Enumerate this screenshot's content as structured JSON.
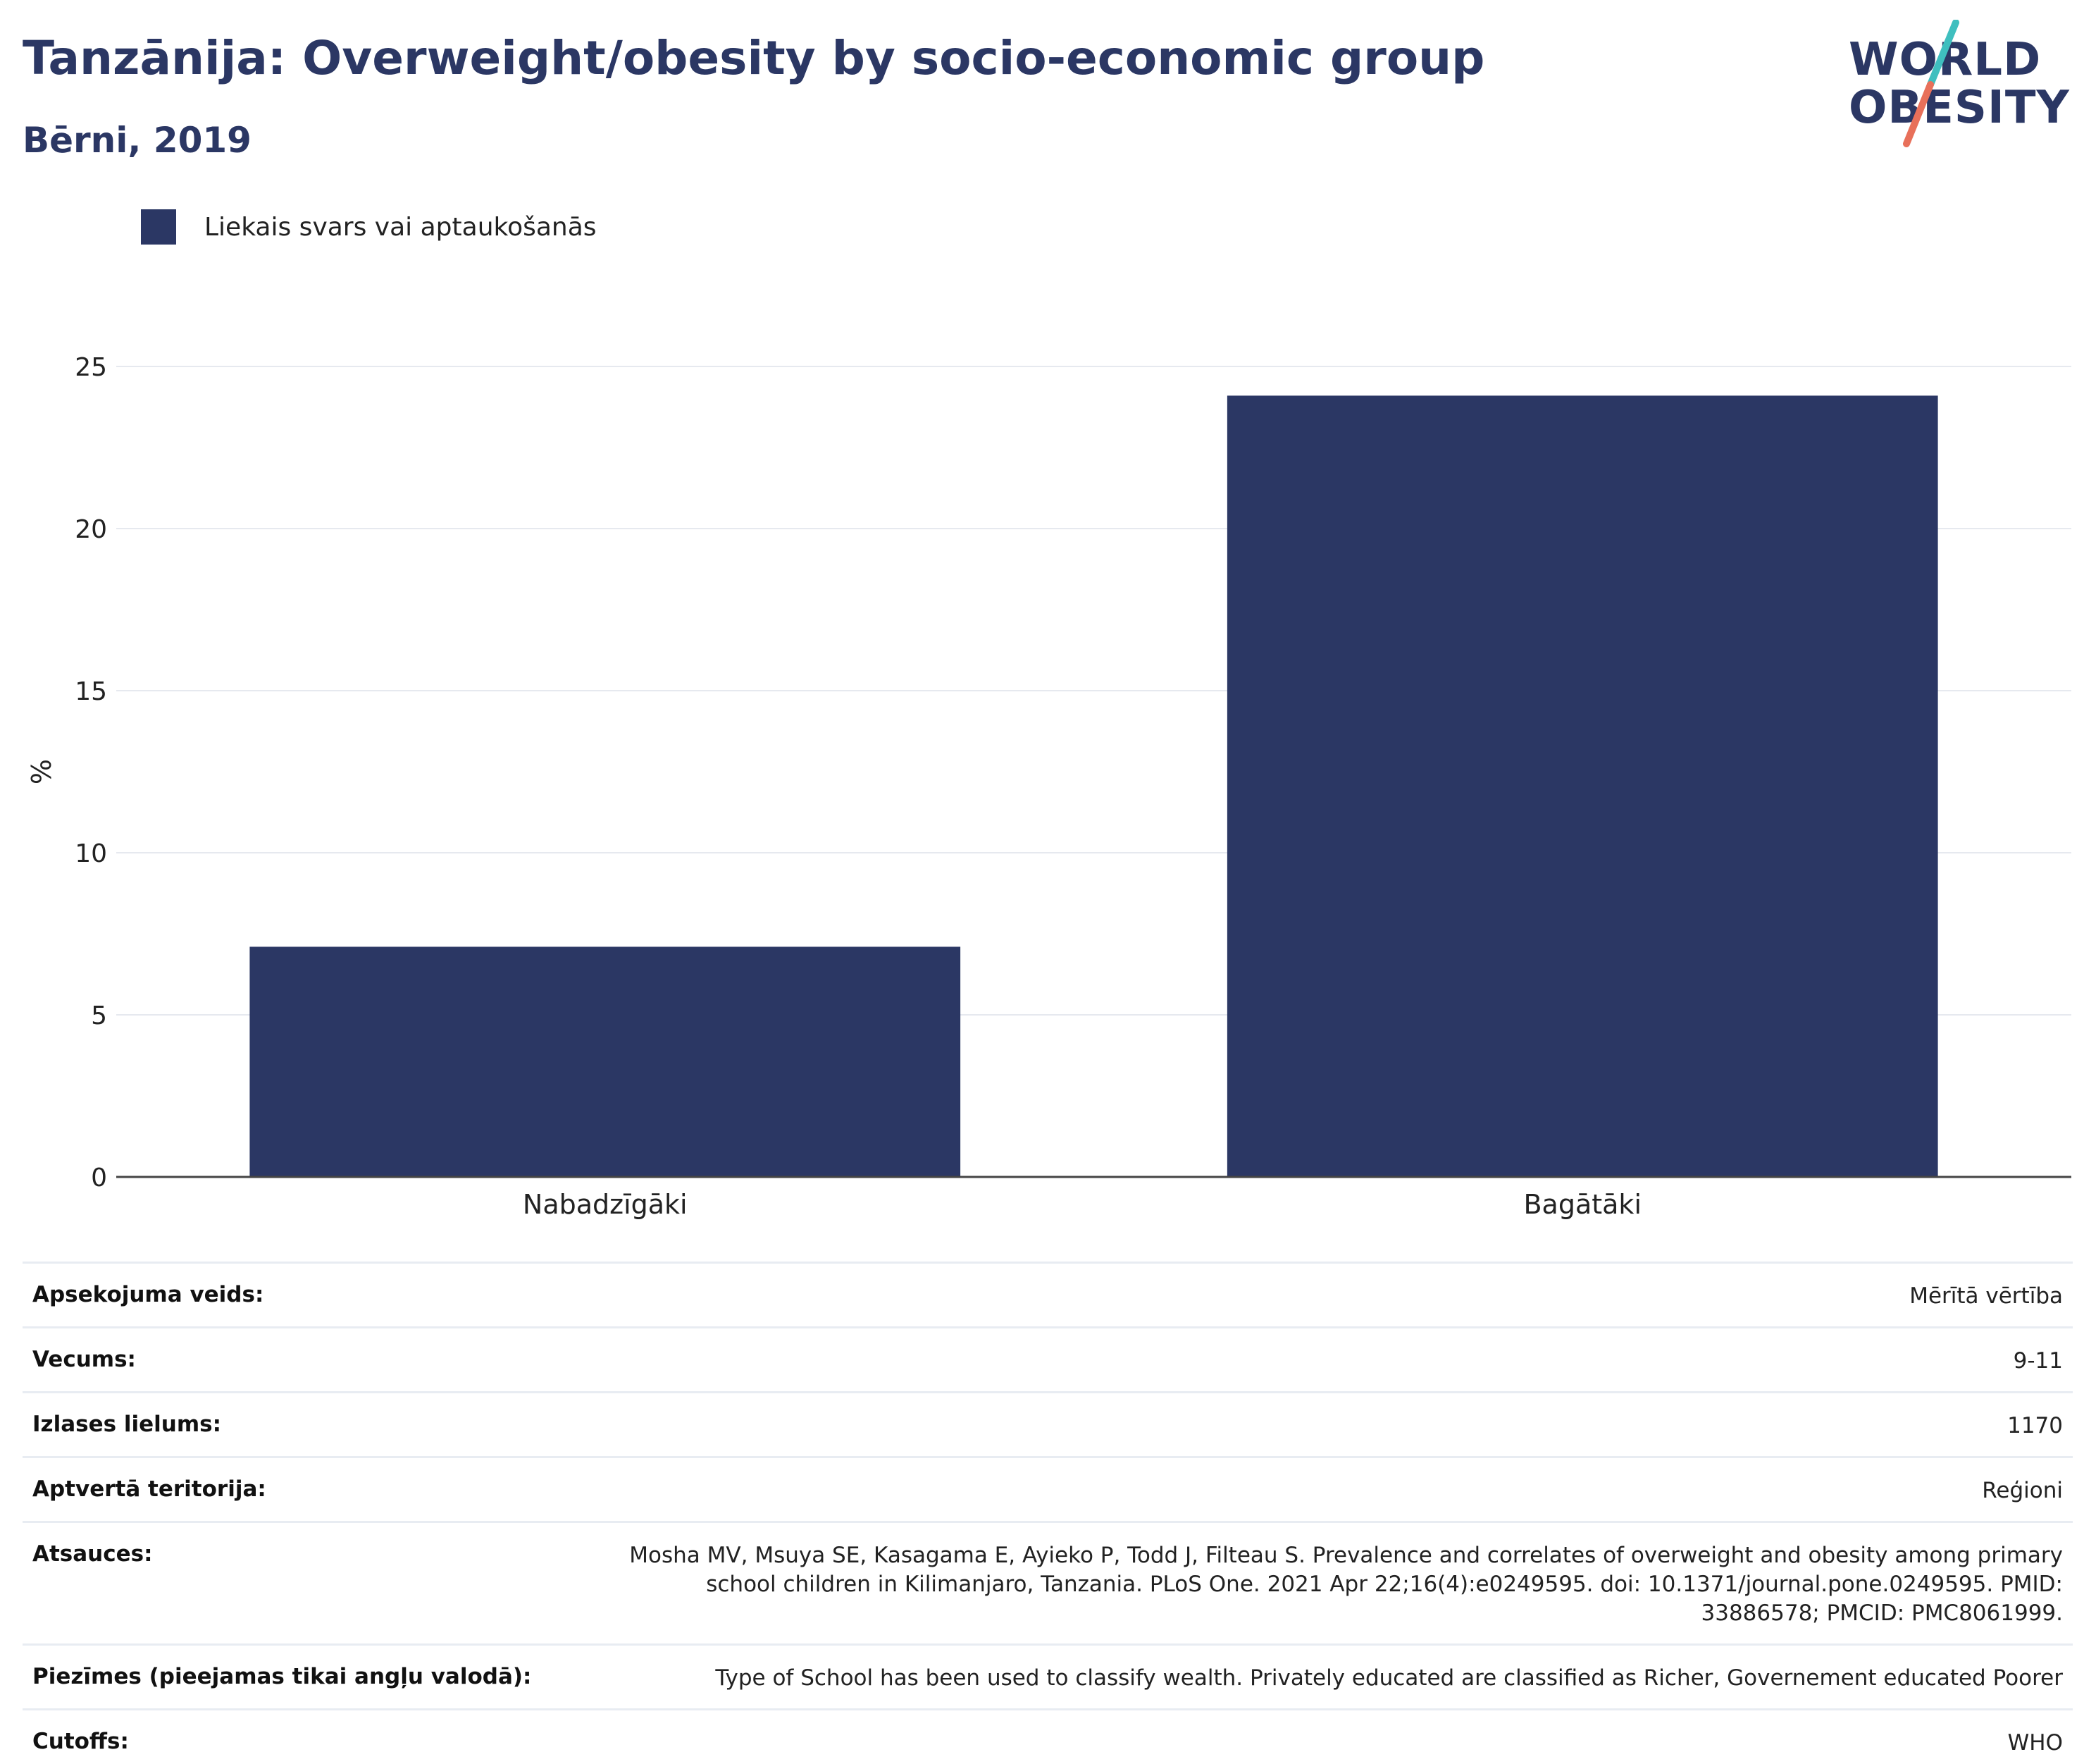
{
  "header": {
    "title": "Tanzānija: Overweight/obesity by socio-economic group",
    "subtitle": "Bērni, 2019"
  },
  "logo": {
    "line1": "WORLD",
    "line2": "OBESITY",
    "colors": {
      "text": "#2b3764",
      "slash_top": "#3fbfbf",
      "slash_bottom": "#e8705a"
    }
  },
  "legend": {
    "items": [
      {
        "label": "Liekais svars vai aptaukošanās",
        "color": "#2b3764"
      }
    ]
  },
  "chart_data": {
    "type": "bar",
    "categories": [
      "Nabadzīgāki",
      "Bagātāki"
    ],
    "series": [
      {
        "name": "Liekais svars vai aptaukošanās",
        "values": [
          7.1,
          24.1
        ]
      }
    ],
    "title": "Tanzānija: Overweight/obesity by socio-economic group",
    "subtitle": "Bērni, 2019",
    "xlabel": "",
    "ylabel": "%",
    "ylim": [
      0,
      25
    ],
    "yticks": [
      0,
      5,
      10,
      15,
      20,
      25
    ],
    "grid": true,
    "legend_position": "top-left",
    "bar_color": "#2b3764"
  },
  "info": {
    "rows": [
      {
        "label": "Apsekojuma veids:",
        "value": "Mērītā vērtība"
      },
      {
        "label": "Vecums:",
        "value": "9-11"
      },
      {
        "label": "Izlases lielums:",
        "value": "1170"
      },
      {
        "label": "Aptvertā teritorija:",
        "value": "Reģioni"
      },
      {
        "label": "Atsauces:",
        "value": "Mosha MV, Msuya SE, Kasagama E, Ayieko P, Todd J, Filteau S. Prevalence and correlates of overweight and obesity among primary school children in Kilimanjaro, Tanzania. PLoS One. 2021 Apr 22;16(4):e0249595. doi: 10.1371/journal.pone.0249595. PMID: 33886578; PMCID: PMC8061999."
      },
      {
        "label": "Piezīmes (pieejamas tikai angļu valodā):",
        "value": "Type of School has been used to classify wealth. Privately educated are classified as Richer, Governement educated Poorer"
      },
      {
        "label": "Cutoffs:",
        "value": "WHO"
      }
    ]
  }
}
